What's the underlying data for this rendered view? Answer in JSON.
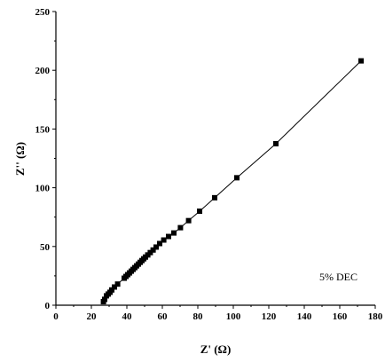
{
  "chart_data": {
    "type": "scatter",
    "title": "",
    "xlabel": "Z' (Ω)",
    "ylabel": "Z'' (Ω)",
    "xlim": [
      0,
      180
    ],
    "ylim": [
      0,
      250
    ],
    "xticks": [
      0,
      20,
      40,
      60,
      80,
      100,
      120,
      140,
      160,
      180
    ],
    "yticks": [
      0,
      50,
      100,
      150,
      200,
      250
    ],
    "grid": false,
    "annotation": "5% DEC",
    "marker": "square",
    "line": true,
    "series": [
      {
        "name": "5% DEC",
        "color": "#000000",
        "points": [
          [
            26.8,
            3.0
          ],
          [
            27.5,
            5.0
          ],
          [
            28.5,
            8.0
          ],
          [
            29.5,
            9.5
          ],
          [
            30.5,
            11.0
          ],
          [
            31.5,
            13.0
          ],
          [
            33.0,
            15.5
          ],
          [
            34.8,
            18.0
          ],
          [
            38.5,
            23.0
          ],
          [
            39.5,
            24.5
          ],
          [
            40.5,
            26.0
          ],
          [
            41.5,
            27.5
          ],
          [
            42.5,
            29.0
          ],
          [
            43.5,
            30.5
          ],
          [
            44.5,
            32.0
          ],
          [
            45.5,
            33.5
          ],
          [
            46.5,
            35.0
          ],
          [
            47.5,
            36.5
          ],
          [
            48.5,
            38.0
          ],
          [
            49.5,
            39.5
          ],
          [
            50.5,
            41.0
          ],
          [
            51.8,
            42.8
          ],
          [
            53.2,
            44.8
          ],
          [
            54.8,
            47.0
          ],
          [
            56.5,
            49.5
          ],
          [
            58.5,
            52.5
          ],
          [
            60.8,
            55.5
          ],
          [
            63.5,
            58.5
          ],
          [
            66.5,
            61.5
          ],
          [
            70.2,
            66.0
          ],
          [
            74.8,
            72.0
          ],
          [
            81.0,
            80.0
          ],
          [
            89.5,
            91.5
          ],
          [
            102.0,
            108.5
          ],
          [
            124.0,
            137.5
          ],
          [
            172.0,
            208.0
          ]
        ]
      }
    ]
  }
}
